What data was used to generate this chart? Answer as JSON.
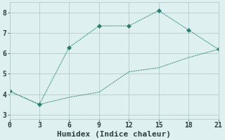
{
  "line1_x": [
    0,
    3,
    6,
    9,
    12,
    15,
    18,
    21
  ],
  "line1_y": [
    4.15,
    3.5,
    6.3,
    7.35,
    7.35,
    8.1,
    7.15,
    6.2
  ],
  "line2_x": [
    0,
    3,
    6,
    9,
    12,
    15,
    18,
    21
  ],
  "line2_y": [
    4.15,
    3.5,
    3.85,
    4.1,
    5.1,
    5.3,
    5.8,
    6.2
  ],
  "line_color": "#2a7d6e",
  "marker": "D",
  "marker_size": 3,
  "xlabel": "Humidex (Indice chaleur)",
  "xlim": [
    0,
    21
  ],
  "ylim": [
    2.8,
    8.5
  ],
  "xticks": [
    0,
    3,
    6,
    9,
    12,
    15,
    18,
    21
  ],
  "yticks": [
    3,
    4,
    5,
    6,
    7,
    8
  ],
  "background_color": "#dff0f0",
  "grid_color": "#b5cccc",
  "font_color": "#2a4040",
  "tick_fontsize": 7,
  "xlabel_fontsize": 8
}
